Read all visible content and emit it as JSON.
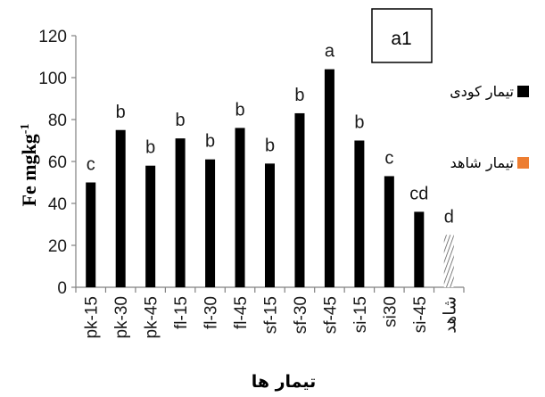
{
  "chart_data": {
    "type": "bar",
    "categories": [
      "pk-15",
      "pk-30",
      "pk-45",
      "fl-15",
      "fl-30",
      "fl-45",
      "sf-15",
      "sf-30",
      "sf-45",
      "si-15",
      "si30",
      "si-45",
      "شاهد"
    ],
    "series": [
      {
        "name": "تیمار کودی",
        "color": "#000000",
        "values": [
          50,
          75,
          58,
          71,
          61,
          76,
          59,
          83,
          104,
          70,
          53,
          36,
          null
        ]
      },
      {
        "name": "تیمار شاهد",
        "color": "#ed7d31",
        "values": [
          null,
          null,
          null,
          null,
          null,
          null,
          null,
          null,
          null,
          null,
          null,
          null,
          25
        ]
      }
    ],
    "letters": [
      "c",
      "b",
      "b",
      "b",
      "b",
      "b",
      "b",
      "b",
      "a",
      "b",
      "c",
      "cd",
      "d"
    ],
    "ylabel_main": "Fe mgkg",
    "ylabel_sup": "-1",
    "xlabel": "تیمار ها",
    "annotation": "a1",
    "ylim": [
      0,
      120
    ],
    "yticks": [
      0,
      20,
      40,
      60,
      80,
      100,
      120
    ],
    "legend_position": "right",
    "grid": false
  }
}
